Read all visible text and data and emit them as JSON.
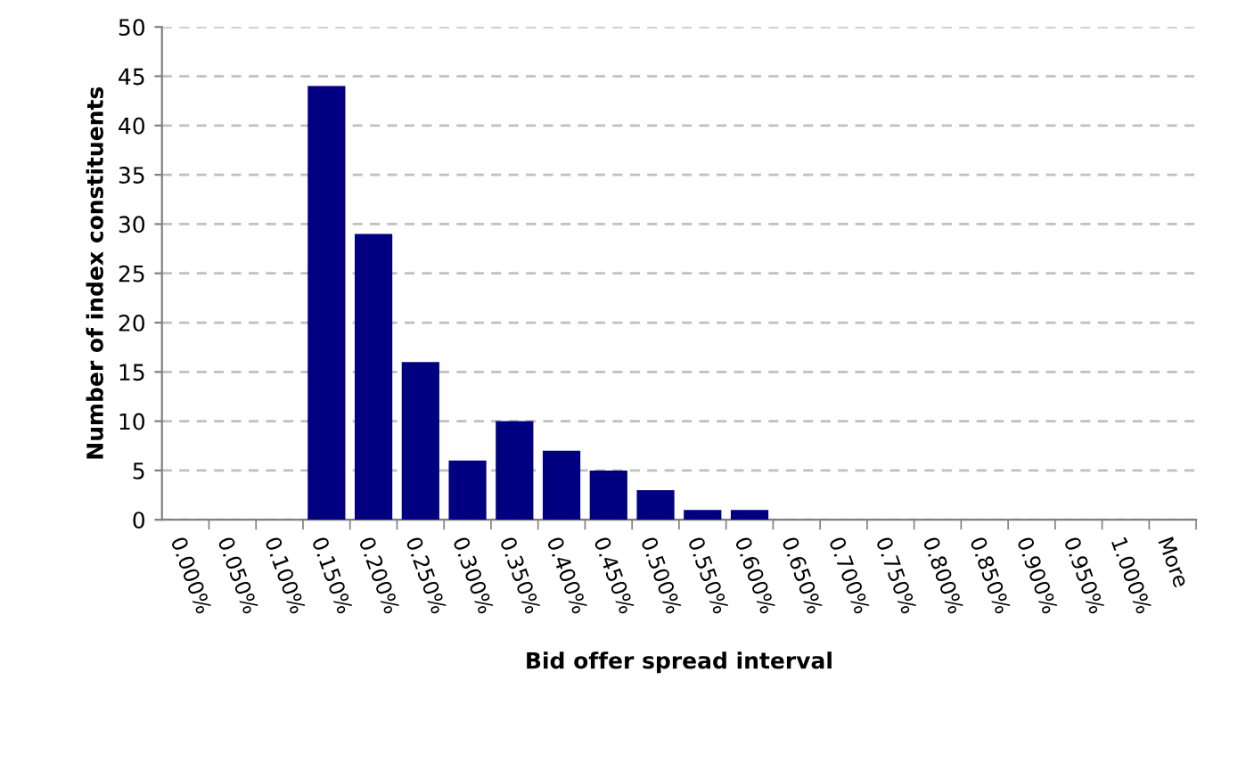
{
  "chart_data": {
    "type": "bar",
    "xlabel": "Bid offer spread interval",
    "ylabel": "Number of index constituents",
    "categories": [
      "0.000%",
      "0.050%",
      "0.100%",
      "0.150%",
      "0.200%",
      "0.250%",
      "0.300%",
      "0.350%",
      "0.400%",
      "0.450%",
      "0.500%",
      "0.550%",
      "0.600%",
      "0.650%",
      "0.700%",
      "0.750%",
      "0.800%",
      "0.850%",
      "0.900%",
      "0.950%",
      "1.000%",
      "More"
    ],
    "values": [
      0,
      0,
      0,
      44,
      29,
      16,
      6,
      10,
      7,
      5,
      3,
      1,
      1,
      0,
      0,
      0,
      0,
      0,
      0,
      0,
      0,
      0
    ],
    "color": "#000080",
    "ylim": [
      0,
      50
    ],
    "yticks": [
      0,
      5,
      10,
      15,
      20,
      25,
      30,
      35,
      40,
      45,
      50
    ],
    "grid": "y",
    "legend": false
  }
}
